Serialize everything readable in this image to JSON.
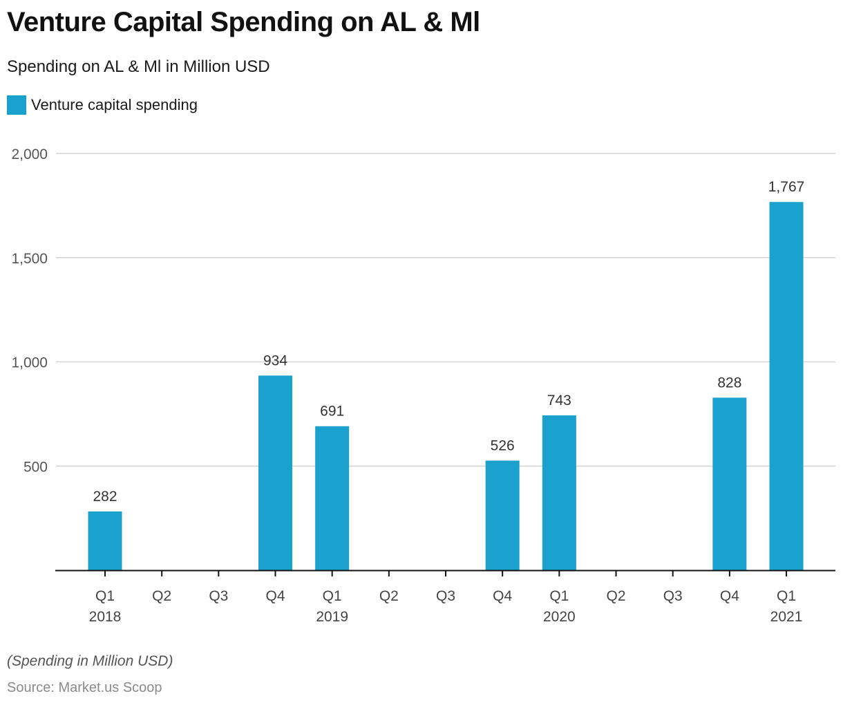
{
  "chart_data": {
    "type": "bar",
    "title": "Venture Capital Spending on AL & Ml",
    "subtitle": "Spending on AL & Ml in Million USD",
    "xlabel": "",
    "ylabel": "",
    "ylim": [
      0,
      2000
    ],
    "yticks": [
      500,
      1000,
      1500,
      2000
    ],
    "ytick_labels": [
      "500",
      "1,000",
      "1,500",
      "2,000"
    ],
    "grid": true,
    "legend_position": "top-left",
    "categories": [
      {
        "quarter": "Q1",
        "year": "2018"
      },
      {
        "quarter": "Q2",
        "year": ""
      },
      {
        "quarter": "Q3",
        "year": ""
      },
      {
        "quarter": "Q4",
        "year": ""
      },
      {
        "quarter": "Q1",
        "year": "2019"
      },
      {
        "quarter": "Q2",
        "year": ""
      },
      {
        "quarter": "Q3",
        "year": ""
      },
      {
        "quarter": "Q4",
        "year": ""
      },
      {
        "quarter": "Q1",
        "year": "2020"
      },
      {
        "quarter": "Q2",
        "year": ""
      },
      {
        "quarter": "Q3",
        "year": ""
      },
      {
        "quarter": "Q4",
        "year": ""
      },
      {
        "quarter": "Q1",
        "year": "2021"
      }
    ],
    "series": [
      {
        "name": "Venture capital spending",
        "color": "#1ba1cd",
        "values": [
          282,
          null,
          null,
          934,
          691,
          null,
          null,
          526,
          743,
          null,
          null,
          828,
          1767
        ],
        "value_labels": [
          "282",
          "",
          "",
          "934",
          "691",
          "",
          "",
          "526",
          "743",
          "",
          "",
          "828",
          "1,767"
        ]
      }
    ],
    "note": "(Spending in Million USD)",
    "source": "Source: Market.us Scoop"
  }
}
